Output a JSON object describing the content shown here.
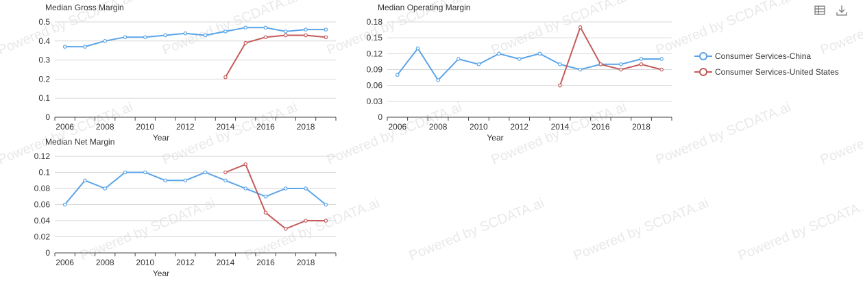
{
  "watermark": "Powered by SCDATA.ai",
  "toolbar": {
    "table_icon": "table-icon",
    "download_icon": "download-icon"
  },
  "legend": [
    {
      "name": "Consumer Services-China",
      "color": "#5aa4e8"
    },
    {
      "name": "Consumer Services-United States",
      "color": "#c45a5a"
    }
  ],
  "chart_data": [
    {
      "id": "gross",
      "type": "line",
      "title": "Median Gross Margin",
      "xlabel": "Year",
      "ylabel": "",
      "ylim": [
        0,
        0.5
      ],
      "yticks": [
        "0",
        "0.1",
        "0.2",
        "0.3",
        "0.4",
        "0.5"
      ],
      "xtick_labels": [
        "2006",
        "2008",
        "2010",
        "2012",
        "2014",
        "2016",
        "2018"
      ],
      "grid": true,
      "series": [
        {
          "name": "Consumer Services-China",
          "x": [
            2006,
            2007,
            2008,
            2009,
            2010,
            2011,
            2012,
            2013,
            2014,
            2015,
            2016,
            2017,
            2018,
            2019
          ],
          "values": [
            0.37,
            0.37,
            0.4,
            0.42,
            0.42,
            0.43,
            0.44,
            0.43,
            0.45,
            0.47,
            0.47,
            0.45,
            0.46,
            0.46
          ]
        },
        {
          "name": "Consumer Services-United States",
          "x": [
            2014,
            2015,
            2016,
            2017,
            2018,
            2019
          ],
          "values": [
            0.21,
            0.39,
            0.42,
            0.43,
            0.43,
            0.42
          ]
        }
      ]
    },
    {
      "id": "operating",
      "type": "line",
      "title": "Median Operating Margin",
      "xlabel": "Year",
      "ylabel": "",
      "ylim": [
        0,
        0.18
      ],
      "yticks": [
        "0",
        "0.03",
        "0.06",
        "0.09",
        "0.12",
        "0.15",
        "0.18"
      ],
      "xtick_labels": [
        "2006",
        "2008",
        "2010",
        "2012",
        "2014",
        "2016",
        "2018"
      ],
      "grid": true,
      "series": [
        {
          "name": "Consumer Services-China",
          "x": [
            2006,
            2007,
            2008,
            2009,
            2010,
            2011,
            2012,
            2013,
            2014,
            2015,
            2016,
            2017,
            2018,
            2019
          ],
          "values": [
            0.08,
            0.13,
            0.07,
            0.11,
            0.1,
            0.12,
            0.11,
            0.12,
            0.1,
            0.09,
            0.1,
            0.1,
            0.11,
            0.11
          ]
        },
        {
          "name": "Consumer Services-United States",
          "x": [
            2014,
            2015,
            2016,
            2017,
            2018,
            2019
          ],
          "values": [
            0.06,
            0.17,
            0.1,
            0.09,
            0.1,
            0.09
          ]
        }
      ]
    },
    {
      "id": "net",
      "type": "line",
      "title": "Median Net Margin",
      "xlabel": "Year",
      "ylabel": "",
      "ylim": [
        0,
        0.12
      ],
      "yticks": [
        "0",
        "0.02",
        "0.04",
        "0.06",
        "0.08",
        "0.1",
        "0.12"
      ],
      "xtick_labels": [
        "2006",
        "2008",
        "2010",
        "2012",
        "2014",
        "2016",
        "2018"
      ],
      "grid": true,
      "series": [
        {
          "name": "Consumer Services-China",
          "x": [
            2006,
            2007,
            2008,
            2009,
            2010,
            2011,
            2012,
            2013,
            2014,
            2015,
            2016,
            2017,
            2018,
            2019
          ],
          "values": [
            0.06,
            0.09,
            0.08,
            0.1,
            0.1,
            0.09,
            0.09,
            0.1,
            0.09,
            0.08,
            0.07,
            0.08,
            0.08,
            0.06
          ]
        },
        {
          "name": "Consumer Services-United States",
          "x": [
            2014,
            2015,
            2016,
            2017,
            2018,
            2019
          ],
          "values": [
            0.1,
            0.11,
            0.05,
            0.03,
            0.04,
            0.04
          ]
        }
      ]
    }
  ]
}
